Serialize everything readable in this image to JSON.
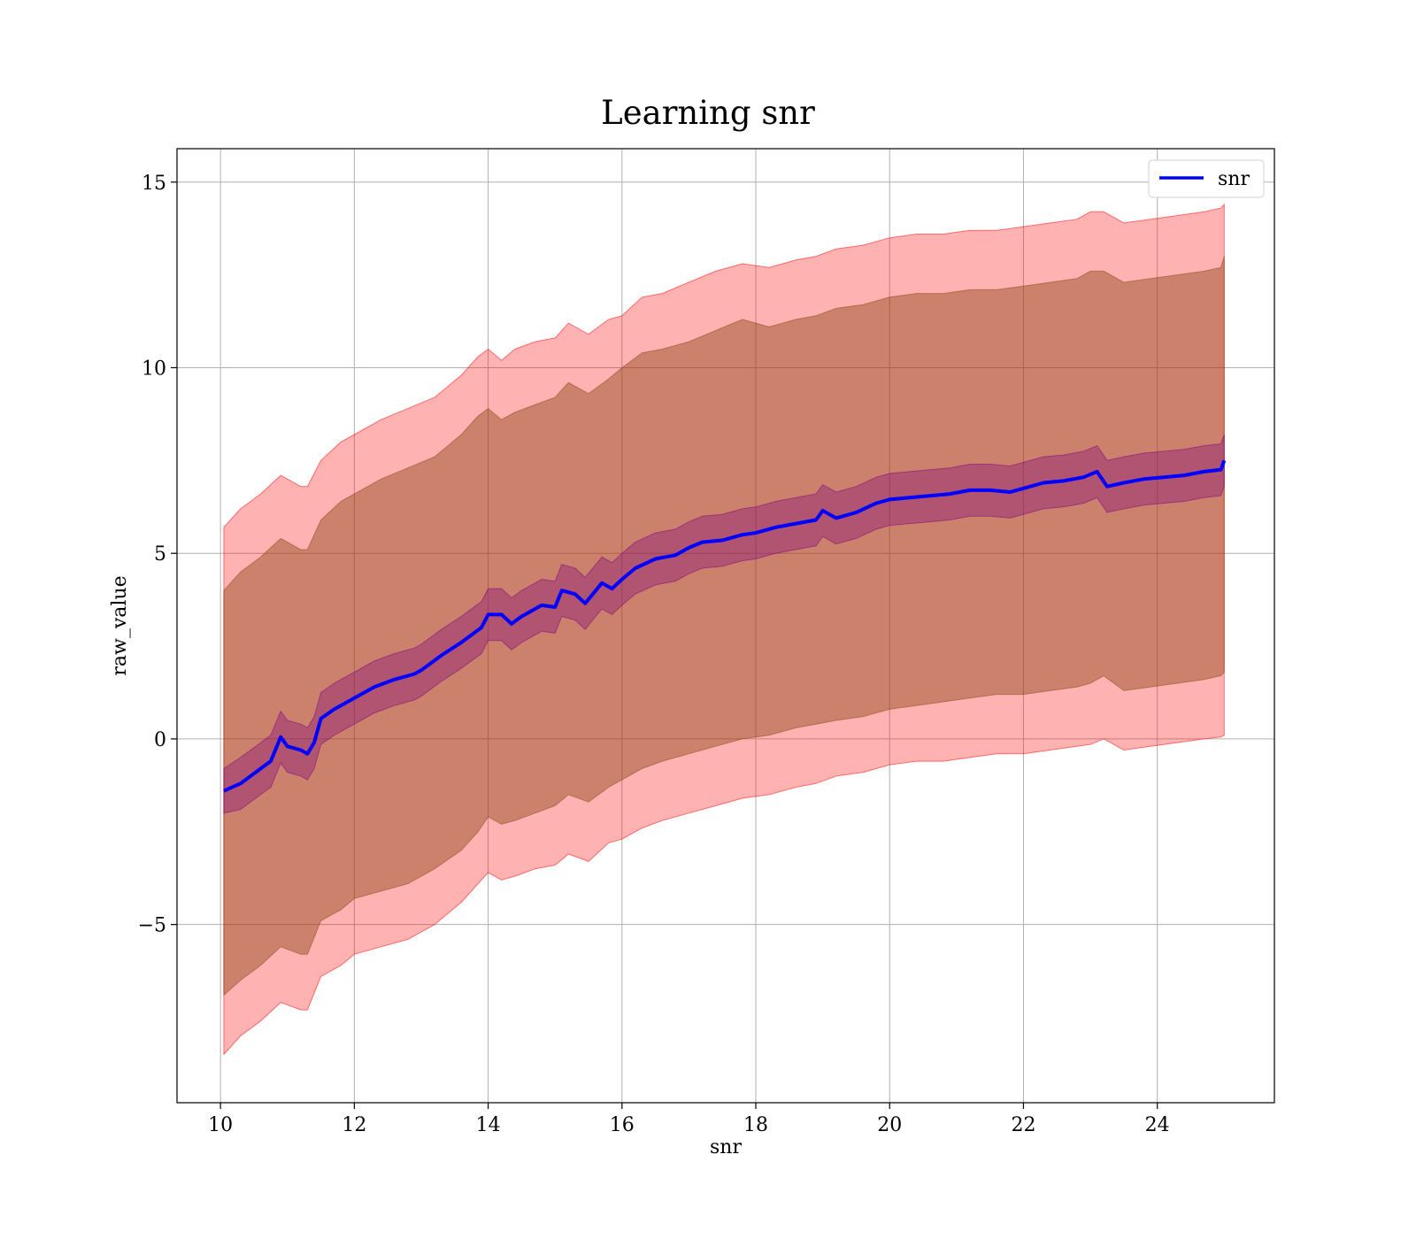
{
  "chart_data": {
    "type": "line",
    "title": "Learning snr",
    "xlabel": "snr",
    "ylabel": "raw_value",
    "xlim": [
      9.35,
      25.75
    ],
    "ylim": [
      -9.8,
      15.9
    ],
    "xticks": [
      10,
      12,
      14,
      16,
      18,
      20,
      22,
      24
    ],
    "yticks": [
      -5,
      0,
      5,
      10,
      15
    ],
    "ytick_labels": [
      "−5",
      "0",
      "5",
      "10",
      "15"
    ],
    "grid": true,
    "legend_placement": "top-right",
    "colors": {
      "line": "#0000ff",
      "outer_band": "#ff0000",
      "middle_band": "#8b4513",
      "inner_band": "#800080",
      "grid": "#b0b0b0"
    },
    "series": [
      {
        "name": "snr",
        "x": [
          10.05,
          10.3,
          10.6,
          10.75,
          10.9,
          11.0,
          11.2,
          11.3,
          11.4,
          11.5,
          11.7,
          11.8,
          12.0,
          12.3,
          12.6,
          12.9,
          13.0,
          13.3,
          13.6,
          13.9,
          14.0,
          14.2,
          14.35,
          14.5,
          14.8,
          15.0,
          15.1,
          15.3,
          15.45,
          15.7,
          15.85,
          16.0,
          16.2,
          16.5,
          16.8,
          17.0,
          17.2,
          17.5,
          17.8,
          18.0,
          18.3,
          18.6,
          18.9,
          19.0,
          19.2,
          19.5,
          19.8,
          20.0,
          20.3,
          20.6,
          20.9,
          21.2,
          21.5,
          21.8,
          22.0,
          22.3,
          22.6,
          22.9,
          23.1,
          23.25,
          23.5,
          23.8,
          24.1,
          24.4,
          24.7,
          24.95,
          25.0
        ],
        "y": [
          -1.4,
          -1.2,
          -0.8,
          -0.6,
          0.05,
          -0.2,
          -0.3,
          -0.4,
          -0.1,
          0.55,
          0.8,
          0.9,
          1.1,
          1.4,
          1.6,
          1.75,
          1.85,
          2.25,
          2.6,
          3.0,
          3.35,
          3.35,
          3.1,
          3.3,
          3.6,
          3.55,
          4.0,
          3.9,
          3.65,
          4.2,
          4.05,
          4.3,
          4.6,
          4.85,
          4.95,
          5.15,
          5.3,
          5.35,
          5.5,
          5.55,
          5.7,
          5.8,
          5.9,
          6.15,
          5.95,
          6.1,
          6.35,
          6.45,
          6.5,
          6.55,
          6.6,
          6.7,
          6.7,
          6.65,
          6.75,
          6.9,
          6.95,
          7.05,
          7.2,
          6.8,
          6.9,
          7.0,
          7.05,
          7.1,
          7.2,
          7.25,
          7.5
        ]
      }
    ],
    "bands": [
      {
        "role": "outer",
        "x": [
          10.05,
          10.3,
          10.6,
          10.9,
          11.2,
          11.3,
          11.5,
          11.8,
          12.0,
          12.4,
          12.8,
          13.2,
          13.6,
          13.85,
          14.0,
          14.2,
          14.4,
          14.7,
          15.0,
          15.2,
          15.5,
          15.8,
          16.0,
          16.3,
          16.6,
          17.0,
          17.4,
          17.8,
          18.2,
          18.6,
          18.9,
          19.2,
          19.6,
          20.0,
          20.4,
          20.8,
          21.2,
          21.6,
          22.0,
          22.4,
          22.8,
          23.0,
          23.2,
          23.5,
          23.9,
          24.3,
          24.7,
          24.95,
          25.0
        ],
        "upper": [
          5.7,
          6.2,
          6.6,
          7.1,
          6.8,
          6.8,
          7.5,
          8.0,
          8.2,
          8.6,
          8.9,
          9.2,
          9.8,
          10.3,
          10.5,
          10.2,
          10.5,
          10.7,
          10.8,
          11.2,
          10.9,
          11.3,
          11.4,
          11.9,
          12.0,
          12.3,
          12.6,
          12.8,
          12.7,
          12.9,
          13.0,
          13.2,
          13.3,
          13.5,
          13.6,
          13.6,
          13.7,
          13.7,
          13.8,
          13.9,
          14.0,
          14.2,
          14.2,
          13.9,
          14.0,
          14.1,
          14.2,
          14.3,
          14.4
        ],
        "lower": [
          -8.5,
          -8.0,
          -7.6,
          -7.1,
          -7.3,
          -7.3,
          -6.4,
          -6.1,
          -5.8,
          -5.6,
          -5.4,
          -5.0,
          -4.4,
          -3.9,
          -3.6,
          -3.8,
          -3.7,
          -3.5,
          -3.4,
          -3.1,
          -3.3,
          -2.8,
          -2.7,
          -2.4,
          -2.2,
          -2.0,
          -1.8,
          -1.6,
          -1.5,
          -1.3,
          -1.2,
          -1.0,
          -0.9,
          -0.7,
          -0.6,
          -0.6,
          -0.5,
          -0.4,
          -0.4,
          -0.3,
          -0.2,
          -0.15,
          0.0,
          -0.3,
          -0.2,
          -0.1,
          0.0,
          0.05,
          0.1
        ]
      },
      {
        "role": "middle",
        "x": [
          10.05,
          10.3,
          10.6,
          10.9,
          11.2,
          11.3,
          11.5,
          11.8,
          12.0,
          12.4,
          12.8,
          13.2,
          13.6,
          13.85,
          14.0,
          14.2,
          14.4,
          14.7,
          15.0,
          15.2,
          15.5,
          15.8,
          16.0,
          16.3,
          16.6,
          17.0,
          17.4,
          17.8,
          18.2,
          18.6,
          18.9,
          19.2,
          19.6,
          20.0,
          20.4,
          20.8,
          21.2,
          21.6,
          22.0,
          22.4,
          22.8,
          23.0,
          23.2,
          23.5,
          23.9,
          24.3,
          24.7,
          24.95,
          25.0
        ],
        "upper": [
          4.0,
          4.5,
          4.9,
          5.4,
          5.1,
          5.1,
          5.9,
          6.4,
          6.6,
          7.0,
          7.3,
          7.6,
          8.2,
          8.7,
          8.9,
          8.6,
          8.8,
          9.0,
          9.2,
          9.6,
          9.3,
          9.7,
          10.0,
          10.4,
          10.5,
          10.7,
          11.0,
          11.3,
          11.1,
          11.3,
          11.4,
          11.6,
          11.7,
          11.9,
          12.0,
          12.0,
          12.1,
          12.1,
          12.2,
          12.3,
          12.4,
          12.6,
          12.6,
          12.3,
          12.4,
          12.5,
          12.6,
          12.7,
          13.0
        ],
        "lower": [
          -6.9,
          -6.5,
          -6.1,
          -5.6,
          -5.8,
          -5.8,
          -4.9,
          -4.6,
          -4.3,
          -4.1,
          -3.9,
          -3.5,
          -3.0,
          -2.5,
          -2.1,
          -2.3,
          -2.2,
          -2.0,
          -1.8,
          -1.5,
          -1.7,
          -1.3,
          -1.1,
          -0.8,
          -0.6,
          -0.4,
          -0.2,
          0.0,
          0.1,
          0.3,
          0.4,
          0.5,
          0.6,
          0.8,
          0.9,
          1.0,
          1.1,
          1.2,
          1.2,
          1.3,
          1.4,
          1.5,
          1.7,
          1.3,
          1.4,
          1.5,
          1.6,
          1.7,
          1.8
        ]
      },
      {
        "role": "inner",
        "x": [
          10.05,
          10.3,
          10.6,
          10.75,
          10.9,
          11.0,
          11.2,
          11.3,
          11.4,
          11.5,
          11.7,
          11.8,
          12.0,
          12.3,
          12.6,
          12.9,
          13.0,
          13.3,
          13.6,
          13.9,
          14.0,
          14.2,
          14.35,
          14.5,
          14.8,
          15.0,
          15.1,
          15.3,
          15.45,
          15.7,
          15.85,
          16.0,
          16.2,
          16.5,
          16.8,
          17.0,
          17.2,
          17.5,
          17.8,
          18.0,
          18.3,
          18.6,
          18.9,
          19.0,
          19.2,
          19.5,
          19.8,
          20.0,
          20.3,
          20.6,
          20.9,
          21.2,
          21.5,
          21.8,
          22.0,
          22.3,
          22.6,
          22.9,
          23.1,
          23.25,
          23.5,
          23.8,
          24.1,
          24.4,
          24.7,
          24.95,
          25.0
        ],
        "upper": [
          -0.8,
          -0.5,
          -0.1,
          0.1,
          0.75,
          0.5,
          0.4,
          0.3,
          0.6,
          1.25,
          1.5,
          1.6,
          1.8,
          2.1,
          2.3,
          2.45,
          2.55,
          2.95,
          3.3,
          3.7,
          4.05,
          4.05,
          3.8,
          4.0,
          4.3,
          4.25,
          4.7,
          4.6,
          4.35,
          4.9,
          4.75,
          5.0,
          5.3,
          5.55,
          5.65,
          5.85,
          6.0,
          6.05,
          6.2,
          6.25,
          6.4,
          6.5,
          6.6,
          6.85,
          6.65,
          6.8,
          7.05,
          7.15,
          7.2,
          7.25,
          7.3,
          7.4,
          7.4,
          7.35,
          7.45,
          7.6,
          7.65,
          7.75,
          7.9,
          7.5,
          7.6,
          7.7,
          7.75,
          7.8,
          7.9,
          7.95,
          8.2
        ],
        "lower": [
          -2.0,
          -1.9,
          -1.5,
          -1.3,
          -0.65,
          -0.9,
          -1.0,
          -1.1,
          -0.8,
          -0.15,
          0.1,
          0.2,
          0.4,
          0.7,
          0.9,
          1.05,
          1.15,
          1.55,
          1.9,
          2.3,
          2.65,
          2.65,
          2.4,
          2.6,
          2.9,
          2.85,
          3.3,
          3.2,
          2.95,
          3.5,
          3.35,
          3.6,
          3.9,
          4.15,
          4.25,
          4.45,
          4.6,
          4.65,
          4.8,
          4.85,
          5.0,
          5.1,
          5.2,
          5.45,
          5.25,
          5.4,
          5.65,
          5.75,
          5.8,
          5.85,
          5.9,
          6.0,
          6.0,
          5.95,
          6.05,
          6.2,
          6.25,
          6.35,
          6.5,
          6.1,
          6.2,
          6.3,
          6.35,
          6.4,
          6.5,
          6.55,
          6.8
        ]
      }
    ]
  }
}
